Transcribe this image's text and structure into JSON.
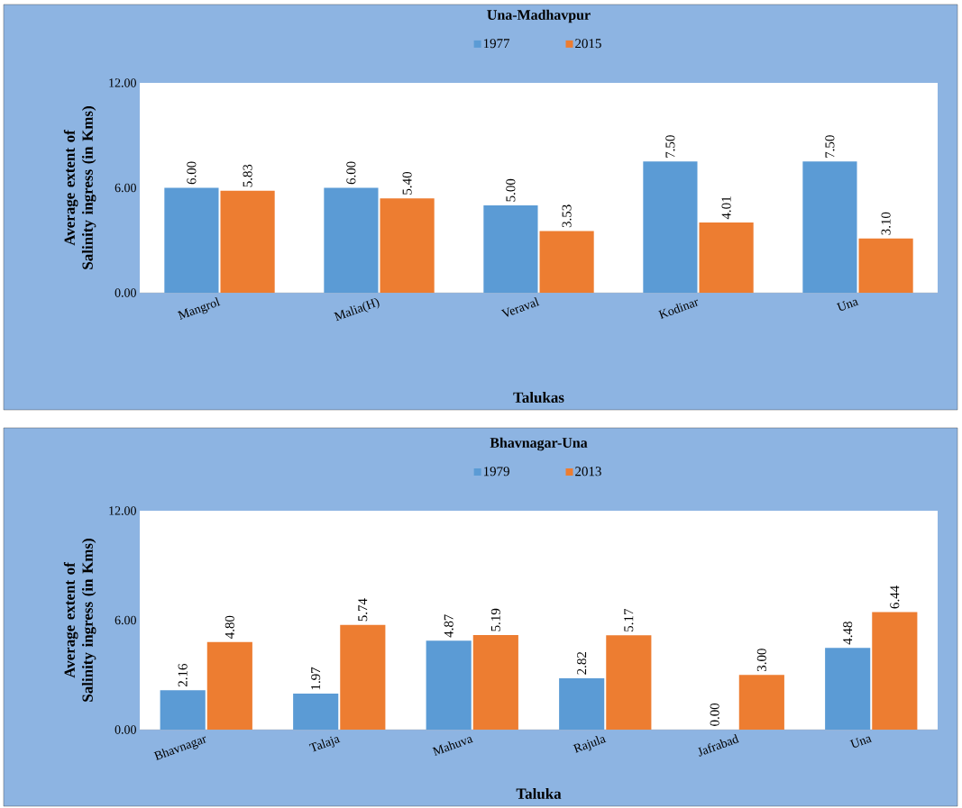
{
  "chart_data": [
    {
      "type": "bar",
      "title": "Una-Madhavpur",
      "xlabel": "Talukas",
      "ylabel": "Average extent of Salinity ingress (in Kms)",
      "categories": [
        "Mangrol",
        "Malia(H)",
        "Veraval",
        "Kodinar",
        "Una"
      ],
      "series": [
        {
          "name": "1977",
          "color": "#5b9bd5",
          "values": [
            6.0,
            6.0,
            5.0,
            7.5,
            7.5
          ],
          "value_labels": [
            "6.00",
            "6.00",
            "5.00",
            "7.50",
            "7.50"
          ]
        },
        {
          "name": "2015",
          "color": "#ed7d31",
          "values": [
            5.83,
            5.4,
            3.53,
            4.01,
            3.1
          ],
          "value_labels": [
            "5.83",
            "5.40",
            "3.53",
            "4.01",
            "3.10"
          ]
        }
      ],
      "ylim": [
        0,
        12
      ],
      "yticks": [
        {
          "value": 0,
          "label": "0.00"
        },
        {
          "value": 6,
          "label": "6.00"
        },
        {
          "value": 12,
          "label": "12.00"
        }
      ],
      "legend": "top"
    },
    {
      "type": "bar",
      "title": "Bhavnagar-Una",
      "xlabel": "Taluka",
      "ylabel": "Average extent of Salinity ingress (in Kms)",
      "categories": [
        "Bhavnagar",
        "Talaja",
        "Mahuva",
        "Rajula",
        "Jafrabad",
        "Una"
      ],
      "series": [
        {
          "name": "1979",
          "color": "#5b9bd5",
          "values": [
            2.16,
            1.97,
            4.87,
            2.82,
            0.0,
            4.48
          ],
          "value_labels": [
            "2.16",
            "1.97",
            "4.87",
            "2.82",
            "0.00",
            "4.48"
          ]
        },
        {
          "name": "2013",
          "color": "#ed7d31",
          "values": [
            4.8,
            5.74,
            5.19,
            5.17,
            3.0,
            6.44
          ],
          "value_labels": [
            "4.80",
            "5.74",
            "5.19",
            "5.17",
            "3.00",
            "6.44"
          ]
        }
      ],
      "ylim": [
        0,
        12
      ],
      "yticks": [
        {
          "value": 0,
          "label": "0.00"
        },
        {
          "value": 6,
          "label": "6.00"
        },
        {
          "value": 12,
          "label": "12.00"
        }
      ],
      "legend": "top"
    }
  ]
}
